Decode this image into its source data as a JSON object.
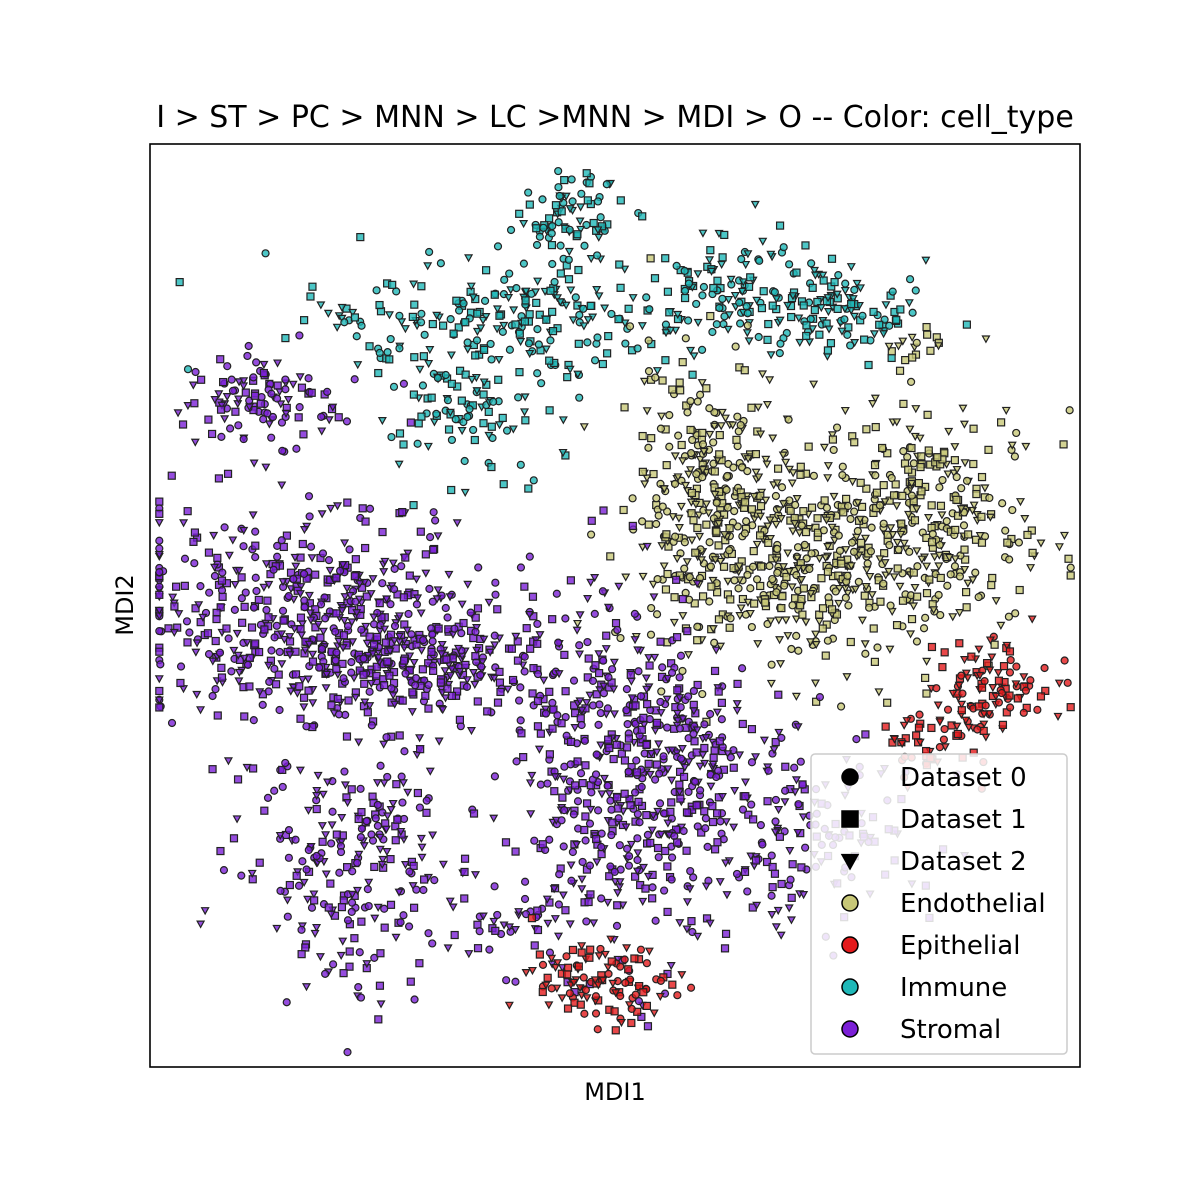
{
  "chart_data": {
    "type": "scatter",
    "title": "I > ST > PC > MNN > LC >MNN > MDI > O -- Color: cell_type",
    "xlabel": "MDI1",
    "ylabel": "MDI2",
    "xlim": [
      0,
      100
    ],
    "ylim": [
      0,
      100
    ],
    "ticks_shown": false,
    "grid": false,
    "legend_position": "lower right",
    "marker_legend": [
      {
        "name": "Dataset 0",
        "marker": "circle"
      },
      {
        "name": "Dataset 1",
        "marker": "square"
      },
      {
        "name": "Dataset 2",
        "marker": "triangle-down"
      }
    ],
    "color_legend": [
      {
        "name": "Endothelial",
        "color": "#c8c878"
      },
      {
        "name": "Epithelial",
        "color": "#e31a1c"
      },
      {
        "name": "Immune",
        "color": "#1fb8b8"
      },
      {
        "name": "Stromal",
        "color": "#7b1fd6"
      }
    ],
    "series": [
      {
        "name": "Immune",
        "color": "#1fb8b8",
        "clusters": [
          {
            "cx": 45,
            "cy": 92,
            "sx": 3,
            "sy": 2.5,
            "n": 80
          },
          {
            "cx": 38,
            "cy": 81,
            "sx": 10,
            "sy": 3.5,
            "n": 220
          },
          {
            "cx": 63,
            "cy": 84,
            "sx": 8,
            "sy": 3,
            "n": 160
          },
          {
            "cx": 74,
            "cy": 81,
            "sx": 5,
            "sy": 2,
            "n": 70
          },
          {
            "cx": 34,
            "cy": 71,
            "sx": 5,
            "sy": 3,
            "n": 90
          },
          {
            "cx": 21,
            "cy": 81,
            "sx": 1,
            "sy": 1,
            "n": 8
          },
          {
            "cx": 25,
            "cy": 77,
            "sx": 1,
            "sy": 1,
            "n": 8
          }
        ]
      },
      {
        "name": "Endothelial",
        "color": "#c8c878",
        "clusters": [
          {
            "cx": 60,
            "cy": 63,
            "sx": 4,
            "sy": 7,
            "n": 250
          },
          {
            "cx": 70,
            "cy": 55,
            "sx": 8,
            "sy": 6,
            "n": 450
          },
          {
            "cx": 84,
            "cy": 59,
            "sx": 6,
            "sy": 7,
            "n": 280
          },
          {
            "cx": 82,
            "cy": 78,
            "sx": 1.5,
            "sy": 1.5,
            "n": 15
          }
        ]
      },
      {
        "name": "Stromal",
        "color": "#7b1fd6",
        "clusters": [
          {
            "cx": 12,
            "cy": 72,
            "sx": 4,
            "sy": 2.5,
            "n": 110
          },
          {
            "cx": 16,
            "cy": 50,
            "sx": 10,
            "sy": 6,
            "n": 450
          },
          {
            "cx": 29,
            "cy": 44,
            "sx": 9,
            "sy": 3,
            "n": 350
          },
          {
            "cx": 22,
            "cy": 22,
            "sx": 6,
            "sy": 7,
            "n": 260
          },
          {
            "cx": 50,
            "cy": 32,
            "sx": 5,
            "sy": 11,
            "n": 350
          },
          {
            "cx": 64,
            "cy": 25,
            "sx": 9,
            "sy": 5,
            "n": 250
          },
          {
            "cx": 57,
            "cy": 36,
            "sx": 6,
            "sy": 3,
            "n": 120
          },
          {
            "cx": 39,
            "cy": 16,
            "sx": 4,
            "sy": 2,
            "n": 40
          }
        ]
      },
      {
        "name": "Epithelial",
        "color": "#e31a1c",
        "clusters": [
          {
            "cx": 90,
            "cy": 41,
            "sx": 3.5,
            "sy": 3,
            "n": 110
          },
          {
            "cx": 84,
            "cy": 35,
            "sx": 3,
            "sy": 2,
            "n": 40
          },
          {
            "cx": 48,
            "cy": 9,
            "sx": 3.5,
            "sy": 2,
            "n": 110
          }
        ]
      }
    ]
  }
}
